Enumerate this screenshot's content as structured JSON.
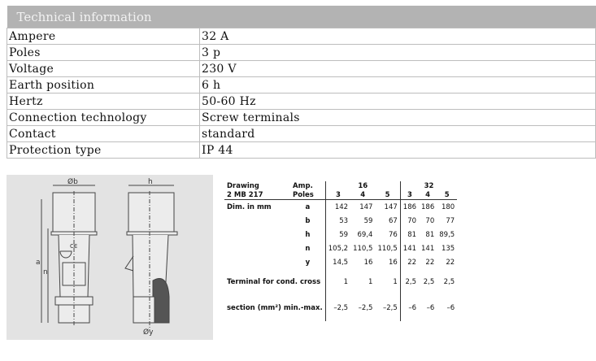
{
  "tech": {
    "title": "Technical information",
    "rows": [
      {
        "label": "Ampere",
        "value": "32 A"
      },
      {
        "label": "Poles",
        "value": "3 p"
      },
      {
        "label": "Voltage",
        "value": "230 V"
      },
      {
        "label": "Earth position",
        "value": "6 h"
      },
      {
        "label": "Hertz",
        "value": "50-60 Hz"
      },
      {
        "label": "Connection technology",
        "value": "Screw terminals"
      },
      {
        "label": "Contact",
        "value": "standard"
      },
      {
        "label": "Protection type",
        "value": "IP 44"
      }
    ]
  },
  "drawing": {
    "labels": {
      "b": "Øb",
      "h": "h",
      "a": "a",
      "n": "n",
      "y": "Øy",
      "ce": "CE"
    }
  },
  "dims": {
    "drawing_label": "Drawing",
    "drawing_code": "2 MB 217",
    "amp_label": "Amp.",
    "poles_label": "Poles",
    "amps": [
      "16",
      "32"
    ],
    "poles": [
      "3",
      "4",
      "5",
      "3",
      "4",
      "5"
    ],
    "dim_label": "Dim. in mm",
    "rows": [
      {
        "key": "a",
        "values": [
          "142",
          "147",
          "147",
          "186",
          "186",
          "180"
        ]
      },
      {
        "key": "b",
        "values": [
          "53",
          "59",
          "67",
          "70",
          "70",
          "77"
        ]
      },
      {
        "key": "h",
        "values": [
          "59",
          "69,4",
          "76",
          "81",
          "81",
          "89,5"
        ]
      },
      {
        "key": "n",
        "values": [
          "105,2",
          "110,5",
          "110,5",
          "141",
          "141",
          "135"
        ]
      },
      {
        "key": "y",
        "values": [
          "14,5",
          "16",
          "16",
          "22",
          "22",
          "22"
        ]
      }
    ],
    "terminal_label": "Terminal for cond. cross",
    "terminal_values": [
      "1",
      "1",
      "1",
      "2,5",
      "2,5",
      "2,5"
    ],
    "section_label": "section (mm²) min.-max.",
    "section_values": [
      "–2,5",
      "–2,5",
      "–2,5",
      "–6",
      "–6",
      "–6"
    ]
  }
}
